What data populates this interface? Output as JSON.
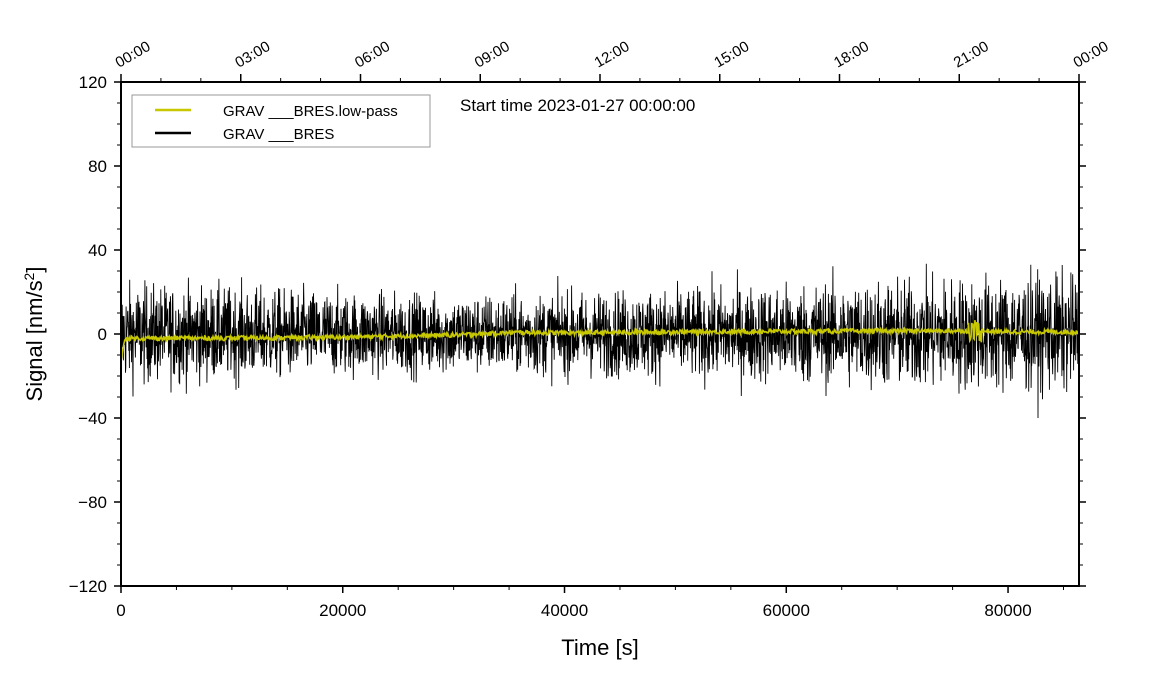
{
  "chart_data": {
    "type": "line",
    "title": "",
    "annotation": "Start time 2023-01-27 00:00:00",
    "xlabel": "Time [s]",
    "ylabel_main": "Signal [nm/s",
    "ylabel_sup": "2",
    "ylabel_end": "]",
    "xlim": [
      0,
      86400
    ],
    "ylim": [
      -120,
      120
    ],
    "x_ticks": [
      0,
      20000,
      40000,
      60000,
      80000
    ],
    "x_tick_labels": [
      "0",
      "20000",
      "40000",
      "60000",
      "80000"
    ],
    "y_ticks": [
      -120,
      -80,
      -40,
      0,
      40,
      80,
      120
    ],
    "y_tick_labels": [
      "−120",
      "−80",
      "−40",
      "0",
      "40",
      "80",
      "120"
    ],
    "top_axis_labels": [
      "00:00",
      "03:00",
      "06:00",
      "09:00",
      "12:00",
      "15:00",
      "18:00",
      "21:00",
      "00:00"
    ],
    "legend_position": "top-left",
    "series": [
      {
        "name": "GRAV ___BRES.low-pass",
        "color": "#c8c800",
        "x": [
          0,
          400,
          10000,
          20000,
          30000,
          36000,
          40000,
          50000,
          60000,
          70000,
          77000,
          80000,
          86400
        ],
        "y": [
          -12,
          -2,
          -2,
          -1.5,
          -0.5,
          0.8,
          0.5,
          1,
          1.2,
          1.5,
          1.5,
          1,
          1
        ]
      },
      {
        "name": "GRAV ___BRES",
        "color": "#000000",
        "description_values": "noise envelope amplitude (nm/s^2) at x",
        "x": [
          0,
          10000,
          20000,
          30000,
          40000,
          50000,
          60000,
          70000,
          80000,
          86400
        ],
        "envelope": [
          30,
          28,
          25,
          24,
          25,
          27,
          30,
          33,
          35,
          35
        ],
        "max_spike": 52,
        "min_spike": -50
      }
    ]
  }
}
